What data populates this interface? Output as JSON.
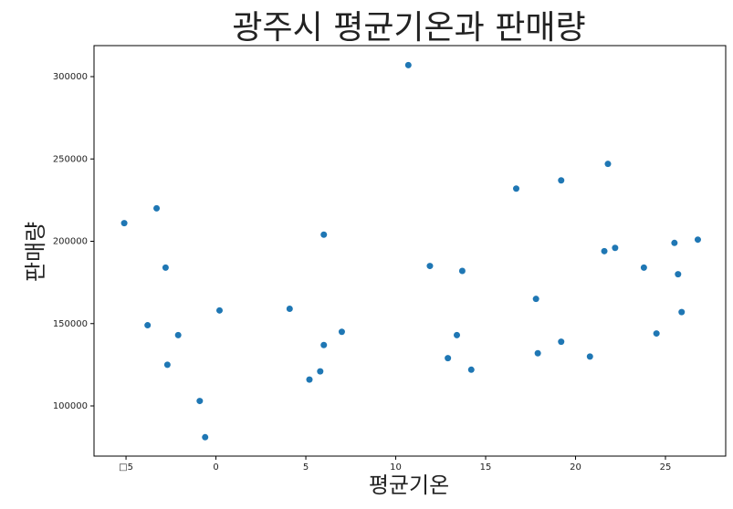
{
  "chart_data": {
    "type": "scatter",
    "title": "광주시 평균기온과 판매량",
    "x_label": "평균기온",
    "y_label": "판매량",
    "color": "#1f77b4",
    "x": [
      -5.1,
      -3.3,
      -2.8,
      -3.8,
      -2.1,
      -2.7,
      -0.9,
      -0.6,
      0.2,
      4.1,
      6.0,
      6.0,
      7.0,
      5.8,
      5.2,
      10.7,
      11.9,
      13.7,
      13.4,
      12.9,
      14.2,
      16.7,
      19.2,
      17.8,
      17.9,
      19.2,
      20.8,
      21.8,
      21.6,
      22.2,
      23.8,
      24.5,
      25.5,
      25.7,
      25.9,
      26.8
    ],
    "values": [
      211000,
      220000,
      184000,
      149000,
      143000,
      125000,
      103000,
      81000,
      158000,
      159000,
      204000,
      137000,
      145000,
      121000,
      116000,
      307000,
      185000,
      182000,
      143000,
      129000,
      122000,
      232000,
      237000,
      165000,
      132000,
      139000,
      130000,
      247000,
      194000,
      196000,
      184000,
      144000,
      199000,
      180000,
      157000,
      201000
    ],
    "xlim": [
      -6.78,
      28.35
    ],
    "xticks": [
      {
        "value": -5,
        "label": "□5"
      },
      0,
      5,
      10,
      15,
      20,
      25
    ],
    "ylim": [
      69530,
      318840
    ],
    "yticks": [
      100000,
      150000,
      200000,
      250000,
      300000
    ]
  }
}
